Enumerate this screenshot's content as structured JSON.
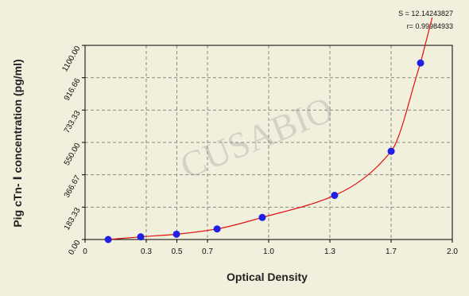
{
  "chart_data": {
    "type": "scatter",
    "x_label": "Optical Density",
    "y_label": "Pig cTn- Ⅰ concentration (pg/ml)",
    "annotations": [
      "S = 12.14243827",
      "r= 0.99984933"
    ],
    "watermark": "CUSABIO",
    "x": [
      0.126,
      0.303,
      0.498,
      0.719,
      0.965,
      1.359,
      1.667,
      1.827
    ],
    "series": [
      {
        "color": "#1f1fe6",
        "values": [
          0,
          15,
          30,
          60,
          125,
          250,
          500,
          1000
        ]
      }
    ],
    "fit_color": "#e01010",
    "xlim": [
      0,
      2
    ],
    "xticks": [
      0,
      {
        "value": 0.3333,
        "label": "0.3"
      },
      0.5,
      {
        "value": 0.6667,
        "label": "0.7"
      },
      {
        "value": 1,
        "label": "1.0"
      },
      {
        "value": 1.3333,
        "label": "1.3"
      },
      {
        "value": 1.6667,
        "label": "1.7"
      },
      {
        "value": 2,
        "label": "2.0"
      }
    ],
    "ylim": [
      0,
      1100
    ],
    "yticks": [
      {
        "value": 0,
        "label": "0.00"
      },
      183.33,
      366.67,
      {
        "value": 550,
        "label": "550.00"
      },
      733.33,
      916.66,
      {
        "value": 1100,
        "label": "1100.00"
      }
    ],
    "grid": true
  }
}
